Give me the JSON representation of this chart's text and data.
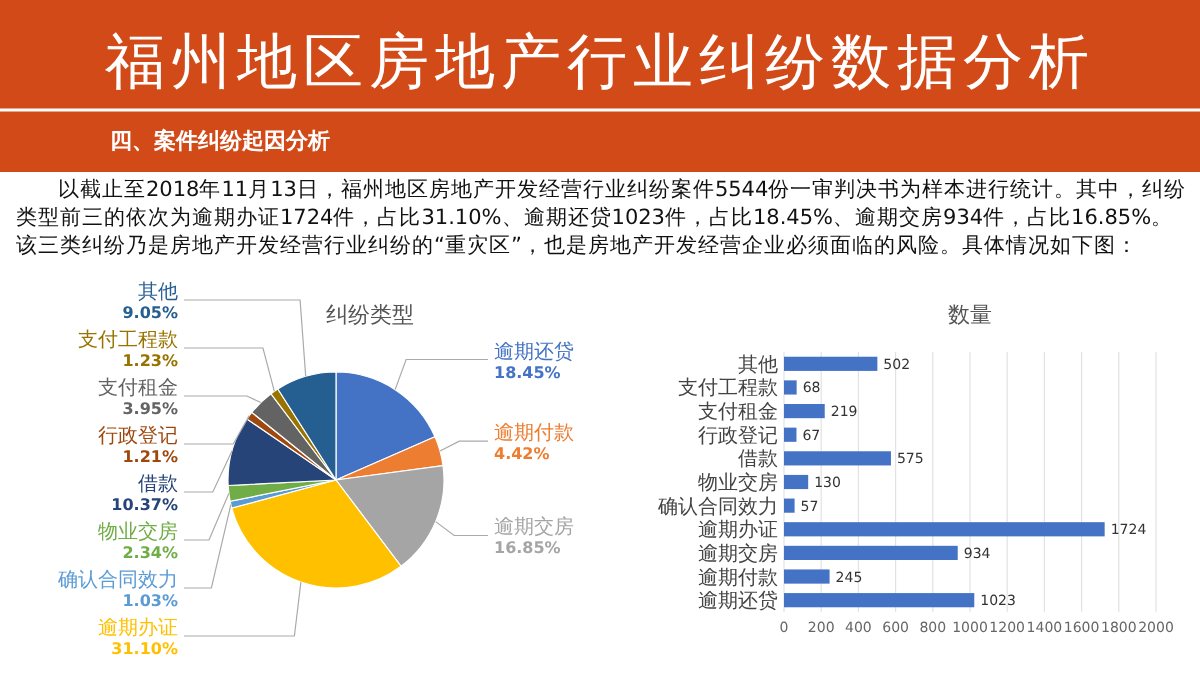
{
  "chart_data": [
    {
      "type": "pie",
      "title": "纠纷类型",
      "annotations": [
        "福州地区房地产行业纠纷数据分析",
        "四、案件纠纷起因分析",
        "以截止至2018年11月13日，福州地区房地产开发经营行业纠纷案件5544份一审判决书为样本进行统计。其中，纠纷类型前三的依次为逾期办证1724件，占比31.10%、逾期还贷1023件，占比18.45%、逾期交房934件，占比16.85%。该三类纠纷乃是房地产开发经营行业纠纷的“重灾区”，也是房地产开发经营企业必须面临的风险。具体情况如下图："
      ],
      "categories": [
        "逾期还贷",
        "逾期付款",
        "逾期交房",
        "逾期办证",
        "确认合同效力",
        "物业交房",
        "借款",
        "行政登记",
        "支付租金",
        "支付工程款",
        "其他"
      ],
      "values": [
        18.45,
        4.42,
        16.85,
        31.1,
        1.03,
        2.34,
        10.37,
        1.21,
        3.95,
        1.23,
        9.05
      ],
      "colors": [
        "#4472c4",
        "#ed7d31",
        "#a5a5a5",
        "#ffc000",
        "#5b9bd5",
        "#70ad47",
        "#264478",
        "#9e480e",
        "#636363",
        "#997300",
        "#255e91"
      ],
      "value_labels": [
        "18.45%",
        "4.42%",
        "16.85%",
        "31.10%",
        "1.03%",
        "2.34%",
        "10.37%",
        "1.21%",
        "3.95%",
        "1.23%",
        "9.05%"
      ]
    },
    {
      "type": "bar",
      "orientation": "horizontal",
      "title": "数量",
      "categories": [
        "其他",
        "支付工程款",
        "支付租金",
        "行政登记",
        "借款",
        "物业交房",
        "确认合同效力",
        "逾期办证",
        "逾期交房",
        "逾期付款",
        "逾期还贷"
      ],
      "series": [
        {
          "color": "#4472c4",
          "values": [
            502,
            68,
            219,
            67,
            575,
            130,
            57,
            1724,
            934,
            245,
            1023
          ]
        }
      ],
      "xlim": [
        0,
        2000
      ],
      "xticks": [
        0,
        200,
        400,
        600,
        800,
        1000,
        1200,
        1400,
        1600,
        1800,
        2000
      ],
      "grid": "x",
      "data_labels": true
    }
  ]
}
